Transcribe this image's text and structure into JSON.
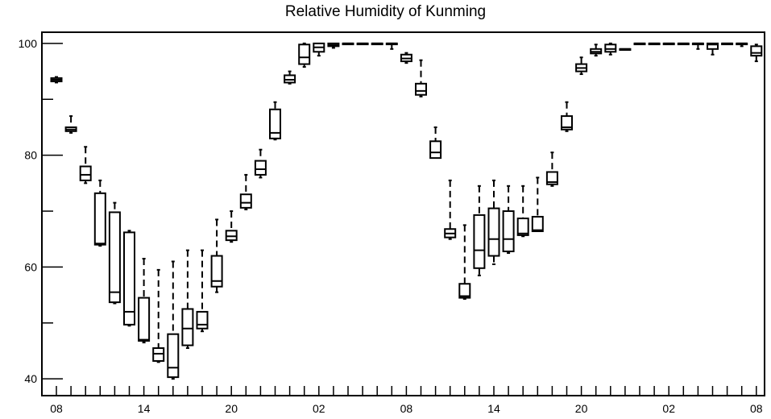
{
  "chart_data": {
    "type": "boxplot",
    "title": "Relative Humidity of Kunming",
    "xlabel": "",
    "ylabel": "",
    "ylim": [
      37,
      102
    ],
    "y_ticks": [
      40,
      60,
      80,
      100
    ],
    "x_tick_labels": [
      "08",
      "14",
      "20",
      "02",
      "08",
      "14",
      "20",
      "02",
      "08"
    ],
    "x_tick_hours": [
      0,
      6,
      12,
      18,
      24,
      30,
      36,
      42,
      48
    ],
    "grid": false,
    "legend": "none",
    "boxes": [
      {
        "hour": 0,
        "whisker_low": 93.0,
        "q1": 93.2,
        "median": 93.5,
        "q3": 93.8,
        "whisker_high": 94.0
      },
      {
        "hour": 1,
        "whisker_low": 84.0,
        "q1": 84.3,
        "median": 84.6,
        "q3": 85.0,
        "whisker_high": 87.0
      },
      {
        "hour": 2,
        "whisker_low": 75.0,
        "q1": 75.5,
        "median": 76.5,
        "q3": 78.0,
        "whisker_high": 81.5
      },
      {
        "hour": 3,
        "whisker_low": 63.8,
        "q1": 64.0,
        "median": 64.2,
        "q3": 73.2,
        "whisker_high": 75.5
      },
      {
        "hour": 4,
        "whisker_low": 53.5,
        "q1": 53.7,
        "median": 55.5,
        "q3": 69.8,
        "whisker_high": 71.5
      },
      {
        "hour": 5,
        "whisker_low": 49.5,
        "q1": 49.7,
        "median": 52.0,
        "q3": 66.2,
        "whisker_high": 66.5
      },
      {
        "hour": 6,
        "whisker_low": 46.5,
        "q1": 46.8,
        "median": 47.0,
        "q3": 54.5,
        "whisker_high": 61.5
      },
      {
        "hour": 7,
        "whisker_low": 43.0,
        "q1": 43.2,
        "median": 44.5,
        "q3": 45.5,
        "whisker_high": 59.5
      },
      {
        "hour": 8,
        "whisker_low": 40.0,
        "q1": 40.3,
        "median": 42.0,
        "q3": 48.0,
        "whisker_high": 61.0
      },
      {
        "hour": 9,
        "whisker_low": 45.5,
        "q1": 46.0,
        "median": 49.0,
        "q3": 52.5,
        "whisker_high": 63.0
      },
      {
        "hour": 10,
        "whisker_low": 48.5,
        "q1": 49.0,
        "median": 49.7,
        "q3": 52.0,
        "whisker_high": 63.0
      },
      {
        "hour": 11,
        "whisker_low": 55.5,
        "q1": 56.5,
        "median": 57.5,
        "q3": 62.0,
        "whisker_high": 68.5
      },
      {
        "hour": 12,
        "whisker_low": 64.5,
        "q1": 64.8,
        "median": 65.5,
        "q3": 66.5,
        "whisker_high": 70.0
      },
      {
        "hour": 13,
        "whisker_low": 70.3,
        "q1": 70.6,
        "median": 71.5,
        "q3": 73.0,
        "whisker_high": 76.5
      },
      {
        "hour": 14,
        "whisker_low": 76.0,
        "q1": 76.5,
        "median": 77.5,
        "q3": 79.0,
        "whisker_high": 81.0
      },
      {
        "hour": 15,
        "whisker_low": 82.8,
        "q1": 83.0,
        "median": 84.0,
        "q3": 88.2,
        "whisker_high": 89.5
      },
      {
        "hour": 16,
        "whisker_low": 92.8,
        "q1": 93.0,
        "median": 93.5,
        "q3": 94.3,
        "whisker_high": 95.0
      },
      {
        "hour": 17,
        "whisker_low": 95.8,
        "q1": 96.3,
        "median": 97.5,
        "q3": 99.8,
        "whisker_high": 100.0
      },
      {
        "hour": 18,
        "whisker_low": 97.8,
        "q1": 98.5,
        "median": 99.3,
        "q3": 100.0,
        "whisker_high": 100.0
      },
      {
        "hour": 19,
        "whisker_low": 99.2,
        "q1": 99.5,
        "median": 99.7,
        "q3": 100.0,
        "whisker_high": 100.0
      },
      {
        "hour": 20,
        "whisker_low": 100.0,
        "q1": 100.0,
        "median": 100.0,
        "q3": 100.0,
        "whisker_high": 100.0
      },
      {
        "hour": 21,
        "whisker_low": 100.0,
        "q1": 100.0,
        "median": 100.0,
        "q3": 100.0,
        "whisker_high": 100.0
      },
      {
        "hour": 22,
        "whisker_low": 100.0,
        "q1": 100.0,
        "median": 100.0,
        "q3": 100.0,
        "whisker_high": 100.0
      },
      {
        "hour": 23,
        "whisker_low": 99.0,
        "q1": 100.0,
        "median": 100.0,
        "q3": 100.0,
        "whisker_high": 100.0
      },
      {
        "hour": 24,
        "whisker_low": 96.5,
        "q1": 96.8,
        "median": 97.3,
        "q3": 98.0,
        "whisker_high": 98.3
      },
      {
        "hour": 25,
        "whisker_low": 90.5,
        "q1": 90.8,
        "median": 91.5,
        "q3": 92.8,
        "whisker_high": 97.0
      },
      {
        "hour": 26,
        "whisker_low": 79.5,
        "q1": 79.5,
        "median": 80.5,
        "q3": 82.5,
        "whisker_high": 85.0
      },
      {
        "hour": 27,
        "whisker_low": 65.0,
        "q1": 65.3,
        "median": 66.0,
        "q3": 66.8,
        "whisker_high": 75.5
      },
      {
        "hour": 28,
        "whisker_low": 54.3,
        "q1": 54.5,
        "median": 54.8,
        "q3": 57.0,
        "whisker_high": 67.5
      },
      {
        "hour": 29,
        "whisker_low": 58.5,
        "q1": 59.8,
        "median": 63.0,
        "q3": 69.3,
        "whisker_high": 74.5
      },
      {
        "hour": 30,
        "whisker_low": 60.5,
        "q1": 62.0,
        "median": 65.0,
        "q3": 70.5,
        "whisker_high": 75.5
      },
      {
        "hour": 31,
        "whisker_low": 62.5,
        "q1": 62.8,
        "median": 65.0,
        "q3": 70.0,
        "whisker_high": 74.5
      },
      {
        "hour": 32,
        "whisker_low": 65.5,
        "q1": 65.7,
        "median": 66.0,
        "q3": 68.7,
        "whisker_high": 74.5
      },
      {
        "hour": 33,
        "whisker_low": 66.3,
        "q1": 66.4,
        "median": 66.6,
        "q3": 69.0,
        "whisker_high": 76.0
      },
      {
        "hour": 34,
        "whisker_low": 74.5,
        "q1": 74.8,
        "median": 75.2,
        "q3": 77.0,
        "whisker_high": 80.5
      },
      {
        "hour": 35,
        "whisker_low": 84.3,
        "q1": 84.6,
        "median": 85.0,
        "q3": 87.0,
        "whisker_high": 89.5
      },
      {
        "hour": 36,
        "whisker_low": 94.5,
        "q1": 95.0,
        "median": 95.6,
        "q3": 96.3,
        "whisker_high": 97.5
      },
      {
        "hour": 37,
        "whisker_low": 97.8,
        "q1": 98.2,
        "median": 98.5,
        "q3": 99.0,
        "whisker_high": 99.8
      },
      {
        "hour": 38,
        "whisker_low": 98.0,
        "q1": 98.5,
        "median": 99.0,
        "q3": 99.8,
        "whisker_high": 100.0
      },
      {
        "hour": 39,
        "whisker_low": 99.0,
        "q1": 99.0,
        "median": 99.0,
        "q3": 99.0,
        "whisker_high": 99.0
      },
      {
        "hour": 40,
        "whisker_low": 100.0,
        "q1": 100.0,
        "median": 100.0,
        "q3": 100.0,
        "whisker_high": 100.0
      },
      {
        "hour": 41,
        "whisker_low": 100.0,
        "q1": 100.0,
        "median": 100.0,
        "q3": 100.0,
        "whisker_high": 100.0
      },
      {
        "hour": 42,
        "whisker_low": 100.0,
        "q1": 100.0,
        "median": 100.0,
        "q3": 100.0,
        "whisker_high": 100.0
      },
      {
        "hour": 43,
        "whisker_low": 100.0,
        "q1": 100.0,
        "median": 100.0,
        "q3": 100.0,
        "whisker_high": 100.0
      },
      {
        "hour": 44,
        "whisker_low": 99.0,
        "q1": 100.0,
        "median": 100.0,
        "q3": 100.0,
        "whisker_high": 100.0
      },
      {
        "hour": 45,
        "whisker_low": 98.0,
        "q1": 99.0,
        "median": 99.8,
        "q3": 100.0,
        "whisker_high": 100.0
      },
      {
        "hour": 46,
        "whisker_low": 100.0,
        "q1": 100.0,
        "median": 100.0,
        "q3": 100.0,
        "whisker_high": 100.0
      },
      {
        "hour": 47,
        "whisker_low": 99.5,
        "q1": 100.0,
        "median": 100.0,
        "q3": 100.0,
        "whisker_high": 100.0
      },
      {
        "hour": 48,
        "whisker_low": 96.8,
        "q1": 97.8,
        "median": 98.3,
        "q3": 99.5,
        "whisker_high": 99.8
      }
    ]
  }
}
